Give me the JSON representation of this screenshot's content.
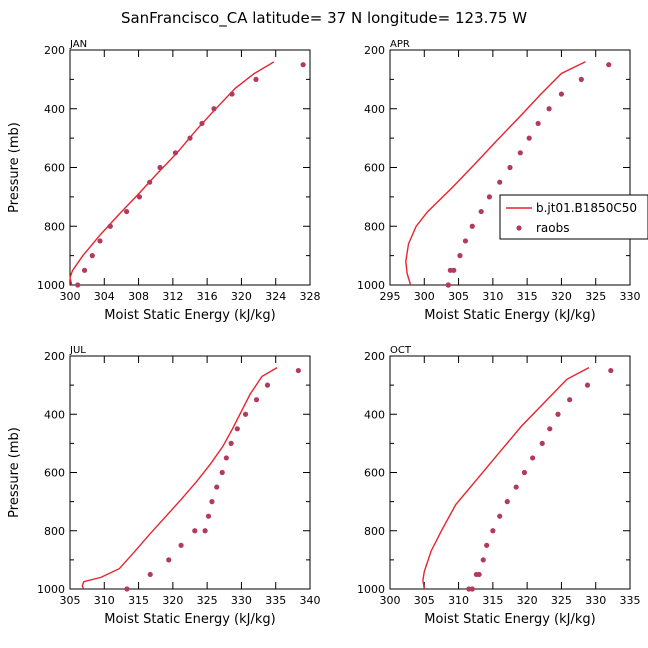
{
  "title": "SanFrancisco_CA  latitude= 37 N longitude= 123.75 W",
  "legend": {
    "model_label": "b.jt01.B1850C50",
    "obs_label": "raobs"
  },
  "colors": {
    "model": "#e8232f",
    "obs": "#b23a5c",
    "axis": "#000000"
  },
  "chart_data": [
    {
      "type": "line",
      "panel": "JAN",
      "title": "JAN",
      "xlabel": "Moist Static Energy (kJ/kg)",
      "ylabel": "Pressure (mb)",
      "xlim": [
        300,
        328
      ],
      "ylim": [
        1000,
        200
      ],
      "xticks": [
        300,
        304,
        308,
        312,
        316,
        320,
        324,
        328
      ],
      "yticks": [
        200,
        400,
        600,
        800,
        1000
      ],
      "model": {
        "name": "b.jt01.B1850C50",
        "x": [
          323.8,
          321.5,
          319.3,
          317.0,
          314.8,
          312.5,
          310.2,
          308.0,
          305.7,
          303.5,
          301.5,
          300.3,
          300.0,
          300.2
        ],
        "y": [
          240,
          280,
          330,
          400,
          470,
          550,
          620,
          690,
          760,
          830,
          900,
          950,
          975,
          1000
        ]
      },
      "obs": {
        "name": "raobs",
        "x": [
          327.2,
          321.7,
          318.9,
          316.8,
          315.4,
          314.0,
          312.3,
          310.5,
          309.3,
          308.1,
          306.6,
          304.7,
          303.5,
          302.6,
          301.7,
          300.9
        ],
        "y": [
          250,
          300,
          350,
          400,
          450,
          500,
          550,
          600,
          650,
          700,
          750,
          800,
          850,
          900,
          950,
          1000
        ]
      }
    },
    {
      "type": "line",
      "panel": "APR",
      "title": "APR",
      "xlabel": "Moist Static Energy (kJ/kg)",
      "ylabel": "Pressure (mb)",
      "xlim": [
        295,
        330
      ],
      "ylim": [
        1000,
        200
      ],
      "xticks": [
        295,
        300,
        305,
        310,
        315,
        320,
        325,
        330
      ],
      "yticks": [
        200,
        400,
        600,
        800,
        1000
      ],
      "model": {
        "name": "b.jt01.B1850C50",
        "x": [
          323.5,
          320.0,
          317.0,
          313.8,
          310.5,
          307.3,
          304.0,
          300.5,
          298.8,
          297.7,
          297.3,
          297.5,
          298.0
        ],
        "y": [
          240,
          280,
          350,
          430,
          510,
          590,
          670,
          750,
          800,
          860,
          920,
          960,
          1000
        ]
      },
      "obs": {
        "name": "raobs",
        "x": [
          326.9,
          322.9,
          320.0,
          318.2,
          316.6,
          315.3,
          314.0,
          312.5,
          311.0,
          309.5,
          308.3,
          307.0,
          306.0,
          305.2,
          304.3,
          303.8,
          303.5,
          303.5
        ],
        "y": [
          250,
          300,
          350,
          400,
          450,
          500,
          550,
          600,
          650,
          700,
          750,
          800,
          850,
          900,
          950,
          950,
          1000,
          1000
        ]
      }
    },
    {
      "type": "line",
      "panel": "JUL",
      "title": "JUL",
      "xlabel": "Moist Static Energy (kJ/kg)",
      "ylabel": "Pressure (mb)",
      "xlim": [
        305,
        340
      ],
      "ylim": [
        1000,
        200
      ],
      "xticks": [
        305,
        310,
        315,
        320,
        325,
        330,
        335,
        340
      ],
      "yticks": [
        200,
        400,
        600,
        800,
        1000
      ],
      "model": {
        "name": "b.jt01.B1850C50",
        "x": [
          335.2,
          333.0,
          331.3,
          330.0,
          328.7,
          327.3,
          325.5,
          323.5,
          321.3,
          319.0,
          316.7,
          314.5,
          312.2,
          309.5,
          307.0,
          306.8,
          307.0
        ],
        "y": [
          240,
          270,
          330,
          390,
          450,
          510,
          570,
          630,
          690,
          750,
          810,
          870,
          930,
          960,
          975,
          990,
          1000
        ]
      },
      "obs": {
        "name": "raobs",
        "x": [
          338.3,
          333.8,
          332.2,
          330.6,
          329.4,
          328.5,
          327.8,
          327.2,
          326.4,
          325.7,
          325.2,
          324.7,
          323.2,
          321.2,
          319.4,
          316.7,
          313.3
        ],
        "y": [
          250,
          300,
          350,
          400,
          450,
          500,
          550,
          600,
          650,
          700,
          750,
          800,
          800,
          850,
          900,
          950,
          1000
        ]
      }
    },
    {
      "type": "line",
      "panel": "OCT",
      "title": "OCT",
      "xlabel": "Moist Static Energy (kJ/kg)",
      "ylabel": "Pressure (mb)",
      "xlim": [
        300,
        335
      ],
      "ylim": [
        1000,
        200
      ],
      "xticks": [
        300,
        305,
        310,
        315,
        320,
        325,
        330,
        335
      ],
      "yticks": [
        200,
        400,
        600,
        800,
        1000
      ],
      "model": {
        "name": "b.jt01.B1850C50",
        "x": [
          329.0,
          325.8,
          322.5,
          319.2,
          316.0,
          312.8,
          309.6,
          307.5,
          306.0,
          305.0,
          304.8,
          305.0
        ],
        "y": [
          240,
          280,
          360,
          440,
          530,
          620,
          710,
          800,
          870,
          940,
          970,
          1000
        ]
      },
      "obs": {
        "name": "raobs",
        "x": [
          332.2,
          328.8,
          326.2,
          324.5,
          323.3,
          322.2,
          320.8,
          319.6,
          318.4,
          317.1,
          316.0,
          315.0,
          314.1,
          313.6,
          313.0,
          312.6,
          312.0,
          311.5
        ],
        "y": [
          250,
          300,
          350,
          400,
          450,
          500,
          550,
          600,
          650,
          700,
          750,
          800,
          850,
          900,
          950,
          950,
          1000,
          1000
        ]
      }
    }
  ]
}
